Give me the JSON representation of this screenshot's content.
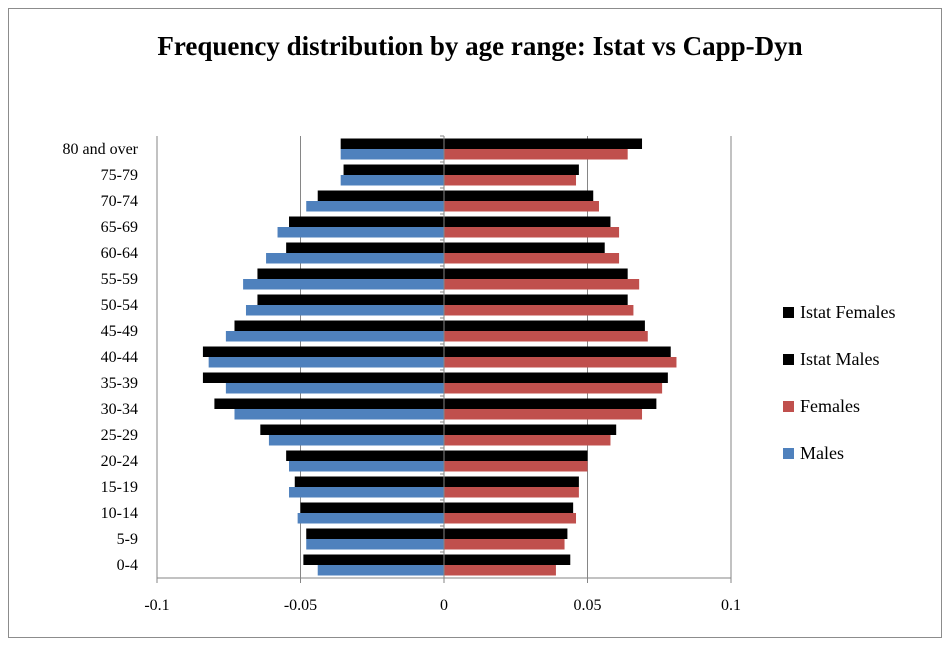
{
  "chart_data": {
    "type": "bar",
    "orientation": "horizontal",
    "title": "Frequency distribution by age range: Istat vs Capp-Dyn",
    "categories": [
      "0-4",
      "5-9",
      "10-14",
      "15-19",
      "20-24",
      "25-29",
      "30-34",
      "35-39",
      "40-44",
      "45-49",
      "50-54",
      "55-59",
      "60-64",
      "65-69",
      "70-74",
      "75-79",
      "80 and over"
    ],
    "series": [
      {
        "name": "Istat Females",
        "color": "#000000",
        "values": [
          0.044,
          0.043,
          0.045,
          0.047,
          0.05,
          0.06,
          0.074,
          0.078,
          0.079,
          0.07,
          0.064,
          0.064,
          0.056,
          0.058,
          0.052,
          0.047,
          0.069
        ]
      },
      {
        "name": "Istat Males",
        "color": "#000000",
        "values": [
          -0.049,
          -0.048,
          -0.05,
          -0.052,
          -0.055,
          -0.064,
          -0.08,
          -0.084,
          -0.084,
          -0.073,
          -0.065,
          -0.065,
          -0.055,
          -0.054,
          -0.044,
          -0.035,
          -0.036
        ]
      },
      {
        "name": "Females",
        "color": "#c0504d",
        "values": [
          0.039,
          0.042,
          0.046,
          0.047,
          0.05,
          0.058,
          0.069,
          0.076,
          0.081,
          0.071,
          0.066,
          0.068,
          0.061,
          0.061,
          0.054,
          0.046,
          0.064
        ]
      },
      {
        "name": "Males",
        "color": "#4f81bd",
        "values": [
          -0.044,
          -0.048,
          -0.051,
          -0.054,
          -0.054,
          -0.061,
          -0.073,
          -0.076,
          -0.082,
          -0.076,
          -0.069,
          -0.07,
          -0.062,
          -0.058,
          -0.048,
          -0.036,
          -0.036
        ]
      }
    ],
    "xlim": [
      -0.1,
      0.1
    ],
    "xticks": [
      -0.1,
      -0.05,
      0,
      0.05,
      0.1
    ],
    "xtick_labels": [
      "-0.1",
      "-0.05",
      "0",
      "0.05",
      "0.1"
    ],
    "grid": "vertical",
    "legend_position": "right",
    "xlabel": "",
    "ylabel": ""
  }
}
